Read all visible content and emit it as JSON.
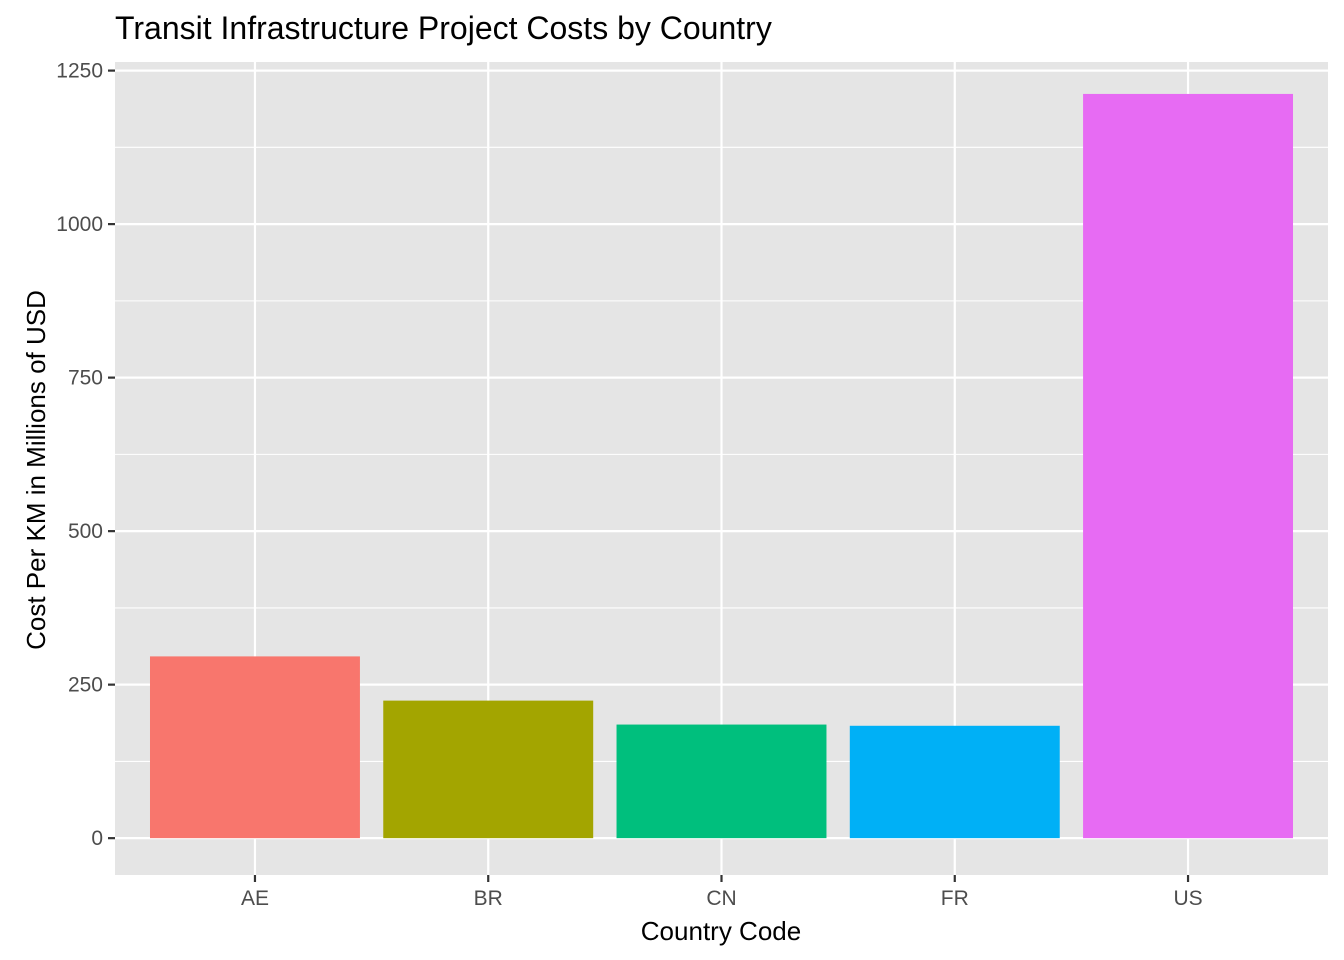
{
  "chart_data": {
    "type": "bar",
    "title": "Transit Infrastructure Project Costs by Country",
    "xlabel": "Country Code",
    "ylabel": "Cost Per KM in Millions of USD",
    "categories": [
      "AE",
      "BR",
      "CN",
      "FR",
      "US"
    ],
    "values": [
      296,
      224,
      185,
      183,
      1212
    ],
    "colors": [
      "#F8766D",
      "#A3A500",
      "#00BF7D",
      "#00B0F6",
      "#E76BF3"
    ],
    "ylim": [
      -60,
      1264
    ],
    "yticks": [
      0,
      250,
      500,
      750,
      1000,
      1250
    ],
    "ytick_labels": [
      "0",
      "250",
      "500",
      "750",
      "1000",
      "1250"
    ],
    "grid": true,
    "legend": "none",
    "panel_background": "#E5E5E5",
    "grid_color": "#FFFFFF"
  }
}
